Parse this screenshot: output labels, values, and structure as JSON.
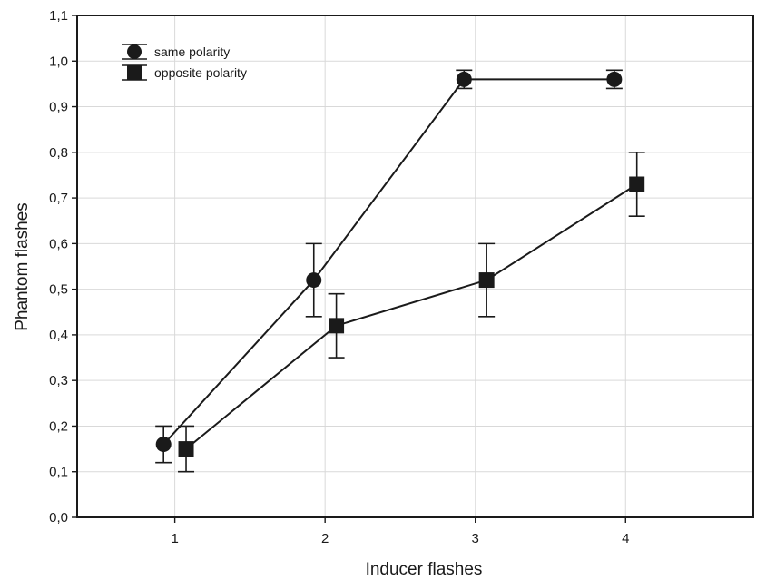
{
  "chart_data": {
    "type": "line",
    "title": "",
    "xlabel": "Inducer flashes",
    "ylabel": "Phantom flashes",
    "x_ticks": [
      "1",
      "2",
      "3",
      "4"
    ],
    "y_ticks": [
      "0,0",
      "0,1",
      "0,2",
      "0,3",
      "0,4",
      "0,5",
      "0,6",
      "0,7",
      "0,8",
      "0,9",
      "1,0",
      "1,1"
    ],
    "xlim": [
      0.35,
      4.85
    ],
    "ylim": [
      0,
      1.1
    ],
    "grid": true,
    "legend_position": "top-left",
    "series": [
      {
        "name": "same polarity",
        "marker": "circle",
        "color": "#1a1a1a",
        "x": [
          1,
          2,
          3,
          4
        ],
        "values": [
          0.16,
          0.52,
          0.96,
          0.96
        ],
        "error_low": [
          0.12,
          0.44,
          0.94,
          0.94
        ],
        "error_high": [
          0.2,
          0.6,
          0.98,
          0.98
        ]
      },
      {
        "name": "opposite polarity",
        "marker": "square",
        "color": "#1a1a1a",
        "x": [
          1,
          2,
          3,
          4
        ],
        "values": [
          0.15,
          0.42,
          0.52,
          0.73
        ],
        "error_low": [
          0.1,
          0.35,
          0.44,
          0.66
        ],
        "error_high": [
          0.2,
          0.49,
          0.6,
          0.8
        ]
      }
    ]
  }
}
